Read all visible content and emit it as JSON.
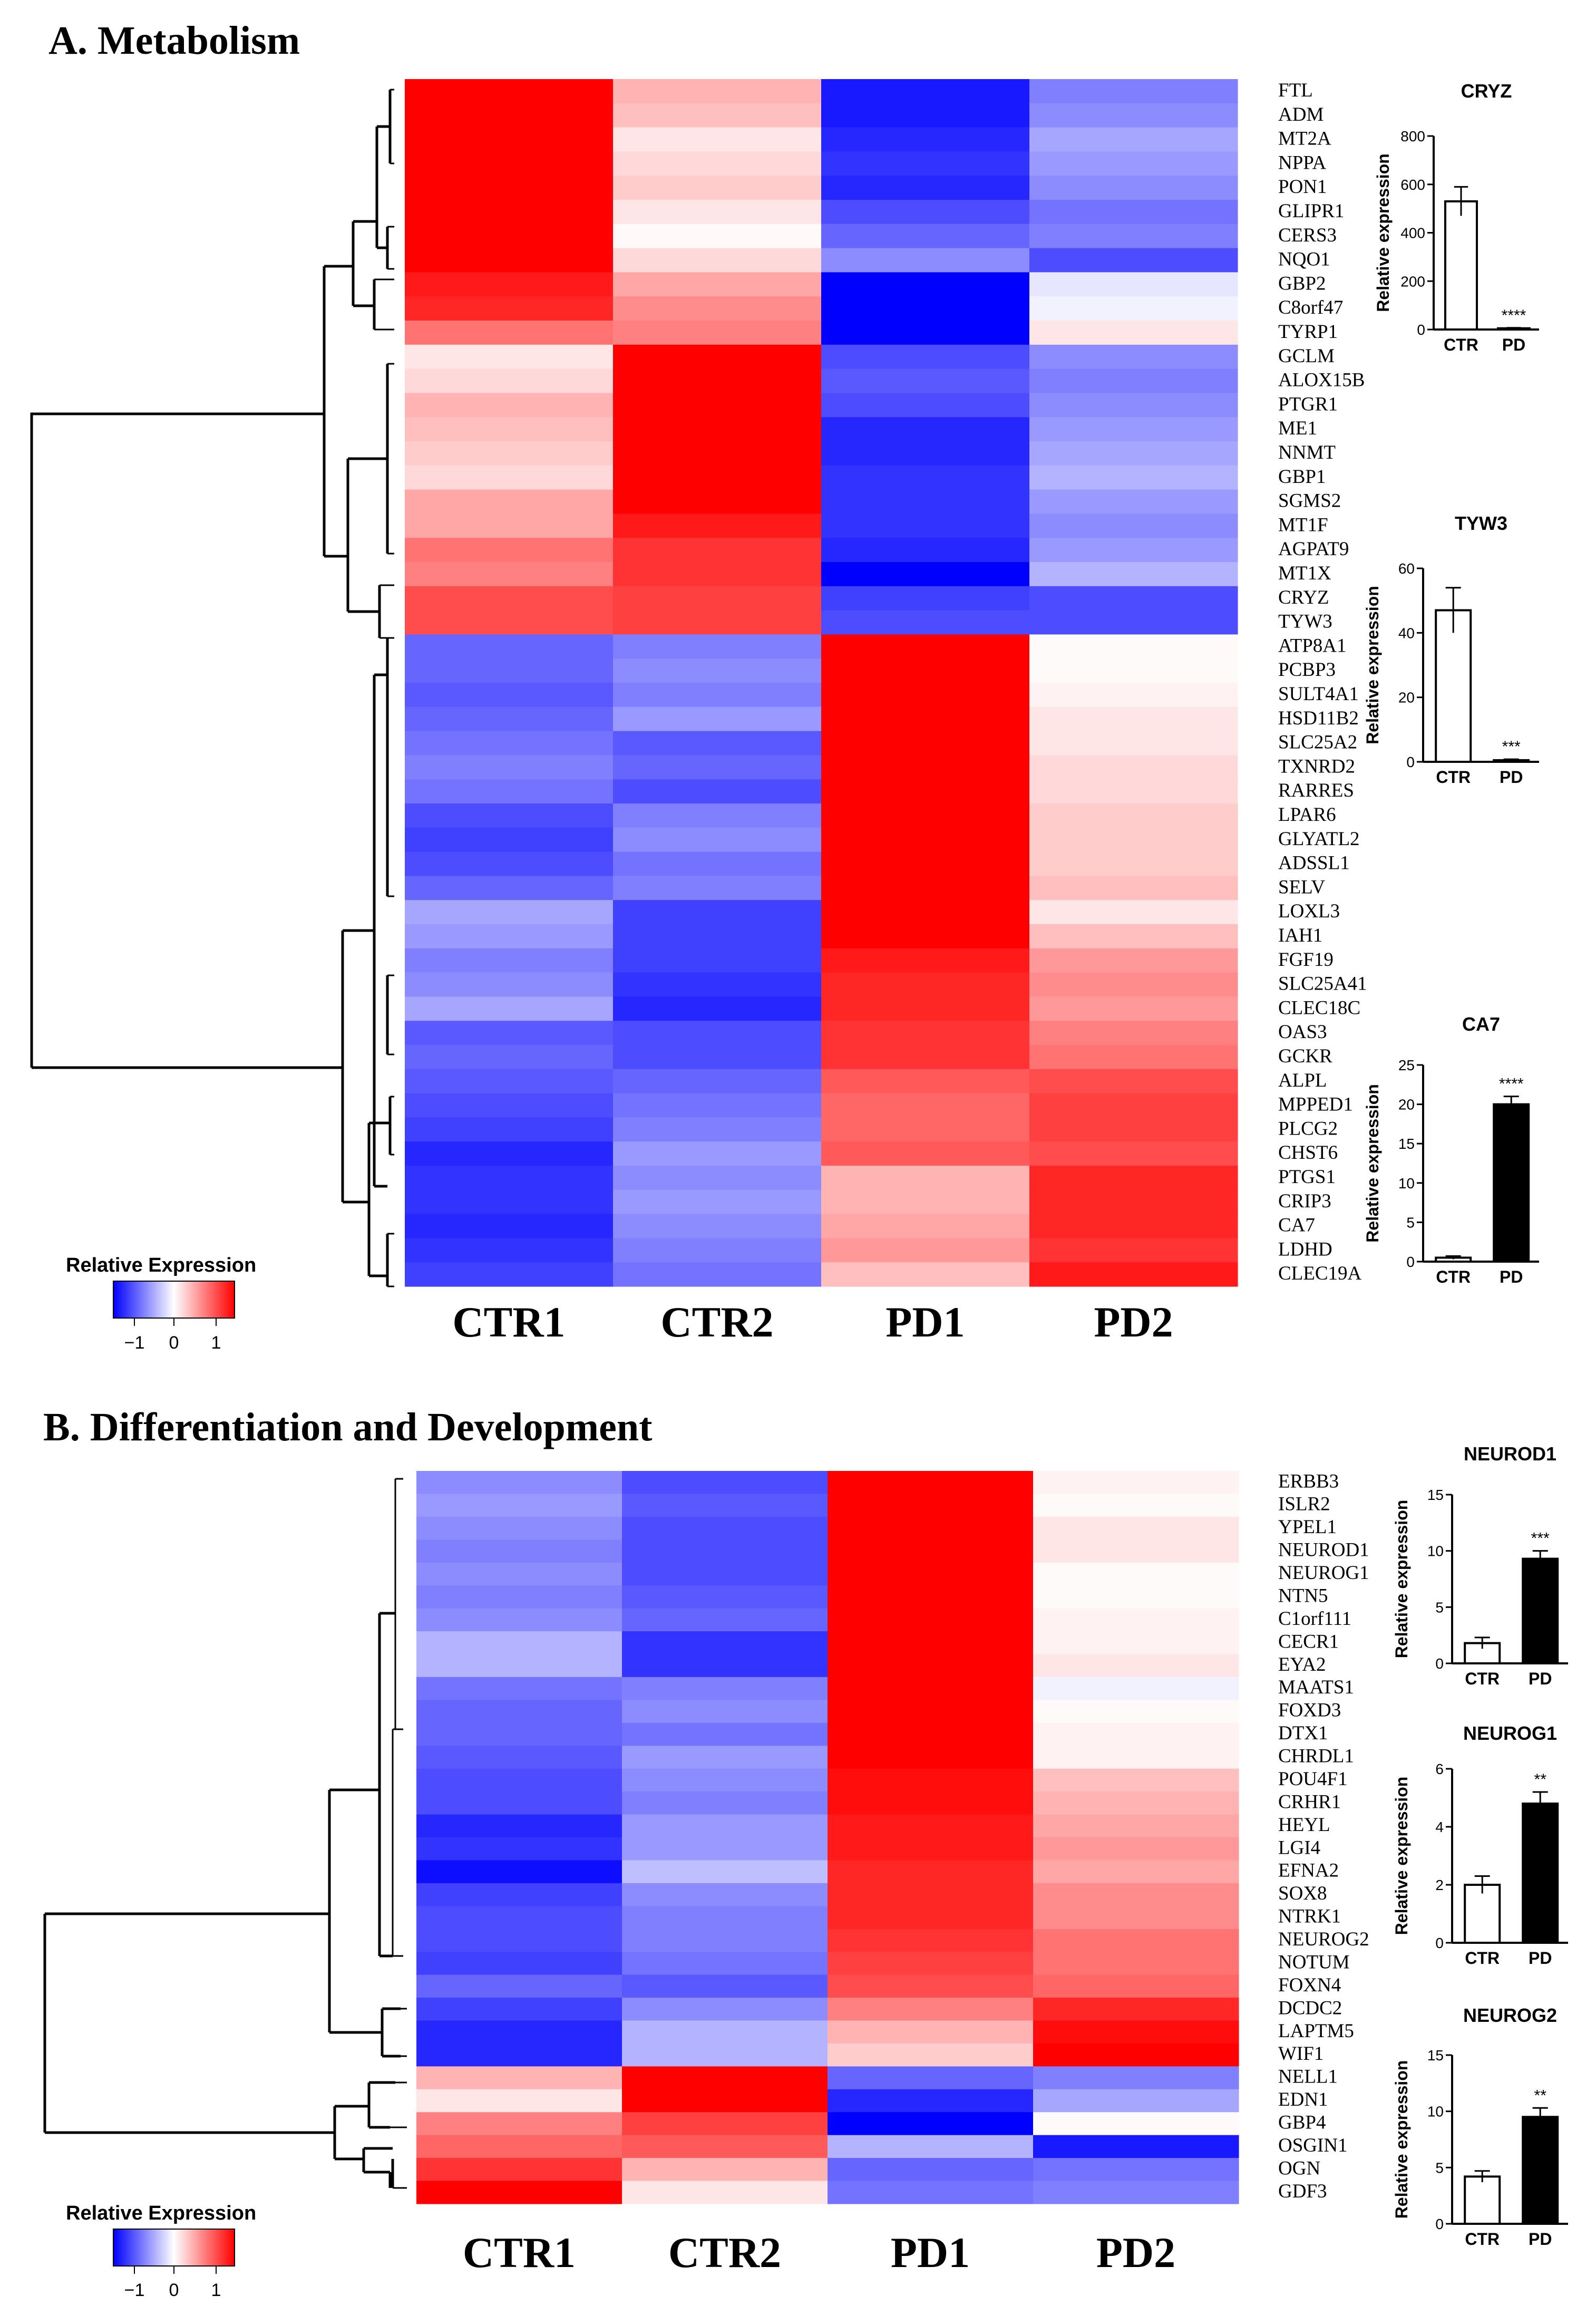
{
  "chart_data": [
    {
      "type": "heatmap",
      "title": "A. Metabolism",
      "columns": [
        "CTR1",
        "CTR2",
        "PD1",
        "PD2"
      ],
      "rows": [
        "FTL",
        "ADM",
        "MT2A",
        "NPPA",
        "PON1",
        "GLIPR1",
        "CERS3",
        "NQO1",
        "GBP2",
        "C8orf47",
        "TYRP1",
        "GCLM",
        "ALOX15B",
        "PTGR1",
        "ME1",
        "NNMT",
        "GBP1",
        "SGMS2",
        "MT1F",
        "AGPAT9",
        "MT1X",
        "CRYZ",
        "TYW3",
        "ATP8A1",
        "PCBP3",
        "SULT4A1",
        "HSD11B2",
        "SLC25A2",
        "TXNRD2",
        "RARRES",
        "LPAR6",
        "GLYATL2",
        "ADSSL1",
        "SELV",
        "LOXL3",
        "IAH1",
        "FGF19",
        "SLC25A41",
        "CLEC18C",
        "OAS3",
        "GCKR",
        "ALPL",
        "MPPED1",
        "PLCG2",
        "CHST6",
        "PTGS1",
        "CRIP3",
        "CA7",
        "LDHD",
        "CLEC19A"
      ],
      "values": [
        [
          1,
          0.3,
          -0.9,
          -0.5
        ],
        [
          1,
          0.25,
          -0.9,
          -0.45
        ],
        [
          1,
          0.1,
          -0.85,
          -0.35
        ],
        [
          1,
          0.15,
          -0.8,
          -0.4
        ],
        [
          1,
          0.2,
          -0.85,
          -0.45
        ],
        [
          1,
          0.1,
          -0.7,
          -0.55
        ],
        [
          1,
          0.02,
          -0.6,
          -0.5
        ],
        [
          1,
          0.15,
          -0.45,
          -0.7
        ],
        [
          0.9,
          0.35,
          -1,
          -0.1
        ],
        [
          0.85,
          0.45,
          -1,
          -0.05
        ],
        [
          0.55,
          0.5,
          -1,
          0.1
        ],
        [
          0.1,
          1,
          -0.7,
          -0.45
        ],
        [
          0.15,
          1,
          -0.65,
          -0.5
        ],
        [
          0.3,
          1,
          -0.7,
          -0.45
        ],
        [
          0.25,
          1,
          -0.85,
          -0.4
        ],
        [
          0.2,
          1,
          -0.85,
          -0.35
        ],
        [
          0.15,
          1,
          -0.8,
          -0.3
        ],
        [
          0.35,
          1,
          -0.8,
          -0.4
        ],
        [
          0.35,
          0.9,
          -0.8,
          -0.45
        ],
        [
          0.55,
          0.8,
          -0.85,
          -0.4
        ],
        [
          0.5,
          0.8,
          -1,
          -0.3
        ],
        [
          0.7,
          0.75,
          -0.75,
          -0.7
        ],
        [
          0.7,
          0.75,
          -0.7,
          -0.7
        ],
        [
          -0.6,
          -0.5,
          1,
          0.02
        ],
        [
          -0.6,
          -0.45,
          1,
          0.02
        ],
        [
          -0.65,
          -0.5,
          1,
          0.05
        ],
        [
          -0.6,
          -0.4,
          1,
          0.1
        ],
        [
          -0.55,
          -0.65,
          1,
          0.1
        ],
        [
          -0.5,
          -0.6,
          1,
          0.15
        ],
        [
          -0.55,
          -0.7,
          1,
          0.15
        ],
        [
          -0.7,
          -0.5,
          1,
          0.2
        ],
        [
          -0.75,
          -0.45,
          1,
          0.2
        ],
        [
          -0.7,
          -0.55,
          1,
          0.2
        ],
        [
          -0.6,
          -0.5,
          1,
          0.25
        ],
        [
          -0.35,
          -0.75,
          1,
          0.1
        ],
        [
          -0.4,
          -0.75,
          1,
          0.25
        ],
        [
          -0.5,
          -0.75,
          0.9,
          0.4
        ],
        [
          -0.45,
          -0.8,
          0.85,
          0.45
        ],
        [
          -0.35,
          -0.85,
          0.85,
          0.4
        ],
        [
          -0.65,
          -0.7,
          0.8,
          0.5
        ],
        [
          -0.6,
          -0.7,
          0.8,
          0.55
        ],
        [
          -0.65,
          -0.6,
          0.65,
          0.7
        ],
        [
          -0.7,
          -0.55,
          0.6,
          0.75
        ],
        [
          -0.75,
          -0.5,
          0.6,
          0.75
        ],
        [
          -0.85,
          -0.4,
          0.65,
          0.7
        ],
        [
          -0.8,
          -0.45,
          0.3,
          0.85
        ],
        [
          -0.8,
          -0.4,
          0.3,
          0.85
        ],
        [
          -0.85,
          -0.45,
          0.35,
          0.85
        ],
        [
          -0.8,
          -0.5,
          0.4,
          0.8
        ],
        [
          -0.75,
          -0.55,
          0.25,
          0.9
        ]
      ],
      "legend": {
        "title": "Relative Expression",
        "ticks": [
          "−1",
          "0",
          "1"
        ]
      }
    },
    {
      "type": "bar",
      "title": "CRYZ",
      "categories": [
        "CTR",
        "PD"
      ],
      "values": [
        530,
        5
      ],
      "errors": [
        60,
        2
      ],
      "ylabel": "Relative expression",
      "ylim": [
        0,
        800
      ],
      "yticks": [
        "0",
        "200",
        "400",
        "600",
        "800"
      ],
      "significance": "****",
      "fills": [
        "#ffffff",
        "#ffffff"
      ]
    },
    {
      "type": "bar",
      "title": "TYW3",
      "categories": [
        "CTR",
        "PD"
      ],
      "values": [
        47,
        0.5
      ],
      "errors": [
        7,
        0.3
      ],
      "ylabel": "Relative expression",
      "ylim": [
        0,
        60
      ],
      "yticks": [
        "0",
        "20",
        "40",
        "60"
      ],
      "significance": "***",
      "fills": [
        "#ffffff",
        "#ffffff"
      ]
    },
    {
      "type": "bar",
      "title": "CA7",
      "categories": [
        "CTR",
        "PD"
      ],
      "values": [
        0.5,
        20
      ],
      "errors": [
        0.2,
        1
      ],
      "ylabel": "Relative expression",
      "ylim": [
        0,
        25
      ],
      "yticks": [
        "0",
        "5",
        "10",
        "15",
        "20",
        "25"
      ],
      "significance": "****",
      "fills": [
        "#ffffff",
        "#000000"
      ]
    },
    {
      "type": "heatmap",
      "title": "B. Differentiation and Development",
      "columns": [
        "CTR1",
        "CTR2",
        "PD1",
        "PD2"
      ],
      "rows": [
        "ERBB3",
        "ISLR2",
        "YPEL1",
        "NEUROD1",
        "NEUROG1",
        "NTN5",
        "C1orf111",
        "CECR1",
        "EYA2",
        "MAATS1",
        "FOXD3",
        "DTX1",
        "CHRDL1",
        "POU4F1",
        "CRHR1",
        "HEYL",
        "LGI4",
        "EFNA2",
        "SOX8",
        "NTRK1",
        "NEUROG2",
        "NOTUM",
        "FOXN4",
        "DCDC2",
        "LAPTM5",
        "WIF1",
        "NELL1",
        "EDN1",
        "GBP4",
        "OSGIN1",
        "OGN",
        "GDF3"
      ],
      "values": [
        [
          -0.45,
          -0.7,
          1,
          0.05
        ],
        [
          -0.4,
          -0.65,
          1,
          0.02
        ],
        [
          -0.45,
          -0.7,
          1,
          0.1
        ],
        [
          -0.5,
          -0.7,
          1,
          0.1
        ],
        [
          -0.45,
          -0.7,
          1,
          0.02
        ],
        [
          -0.5,
          -0.65,
          1,
          0.02
        ],
        [
          -0.45,
          -0.6,
          1,
          0.05
        ],
        [
          -0.3,
          -0.8,
          1,
          0.05
        ],
        [
          -0.3,
          -0.8,
          1,
          0.1
        ],
        [
          -0.55,
          -0.5,
          1,
          -0.05
        ],
        [
          -0.6,
          -0.45,
          1,
          0.02
        ],
        [
          -0.6,
          -0.55,
          1,
          0.05
        ],
        [
          -0.65,
          -0.4,
          1,
          0.05
        ],
        [
          -0.7,
          -0.45,
          0.95,
          0.25
        ],
        [
          -0.7,
          -0.5,
          0.95,
          0.3
        ],
        [
          -0.85,
          -0.4,
          0.9,
          0.35
        ],
        [
          -0.8,
          -0.4,
          0.9,
          0.4
        ],
        [
          -0.95,
          -0.25,
          0.85,
          0.35
        ],
        [
          -0.75,
          -0.45,
          0.85,
          0.45
        ],
        [
          -0.7,
          -0.5,
          0.85,
          0.45
        ],
        [
          -0.7,
          -0.5,
          0.8,
          0.55
        ],
        [
          -0.75,
          -0.55,
          0.75,
          0.55
        ],
        [
          -0.6,
          -0.65,
          0.7,
          0.6
        ],
        [
          -0.75,
          -0.45,
          0.5,
          0.85
        ],
        [
          -0.85,
          -0.3,
          0.3,
          0.95
        ],
        [
          -0.85,
          -0.3,
          0.2,
          1
        ],
        [
          0.3,
          1,
          -0.6,
          -0.5
        ],
        [
          0.1,
          1,
          -0.85,
          -0.35
        ],
        [
          0.5,
          0.75,
          -1,
          0.02
        ],
        [
          0.6,
          0.65,
          -0.3,
          -0.9
        ],
        [
          0.8,
          0.3,
          -0.6,
          -0.55
        ],
        [
          1,
          0.1,
          -0.55,
          -0.5
        ]
      ],
      "legend": {
        "title": "Relative Expression",
        "ticks": [
          "−1",
          "0",
          "1"
        ]
      }
    },
    {
      "type": "bar",
      "title": "NEUROD1",
      "categories": [
        "CTR",
        "PD"
      ],
      "values": [
        1.8,
        9.3
      ],
      "errors": [
        0.5,
        0.7
      ],
      "ylabel": "Relative expression",
      "ylim": [
        0,
        15
      ],
      "yticks": [
        "0",
        "5",
        "10",
        "15"
      ],
      "significance": "***",
      "fills": [
        "#ffffff",
        "#000000"
      ]
    },
    {
      "type": "bar",
      "title": "NEUROG1",
      "categories": [
        "CTR",
        "PD"
      ],
      "values": [
        2.0,
        4.8
      ],
      "errors": [
        0.3,
        0.4
      ],
      "ylabel": "Relative expression",
      "ylim": [
        0,
        6
      ],
      "yticks": [
        "0",
        "2",
        "4",
        "6"
      ],
      "significance": "**",
      "fills": [
        "#ffffff",
        "#000000"
      ]
    },
    {
      "type": "bar",
      "title": "NEUROG2",
      "categories": [
        "CTR",
        "PD"
      ],
      "values": [
        4.2,
        9.5
      ],
      "errors": [
        0.5,
        0.8
      ],
      "ylabel": "Relative expression",
      "ylim": [
        0,
        15
      ],
      "yticks": [
        "0",
        "5",
        "10",
        "15"
      ],
      "significance": "**",
      "fills": [
        "#ffffff",
        "#000000"
      ]
    }
  ]
}
